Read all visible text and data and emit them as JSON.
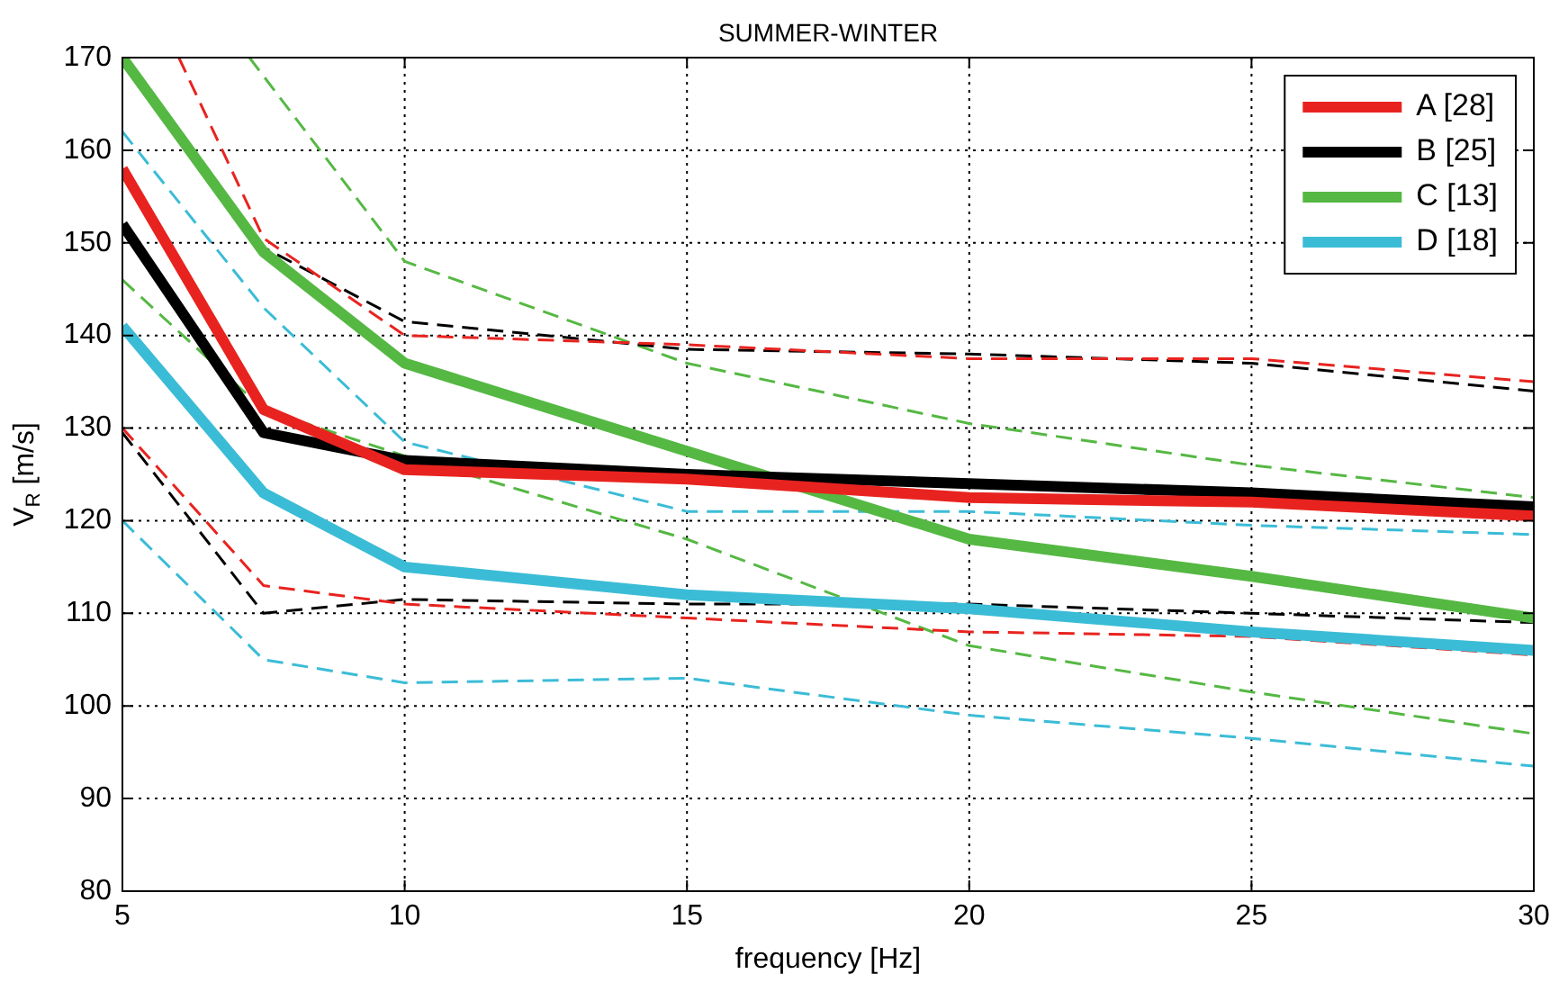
{
  "chart_data": {
    "type": "line",
    "title": "SUMMER-WINTER",
    "xlabel": "frequency [Hz]",
    "ylabel": "V$_{R}$ [m/s]",
    "x": [
      5,
      7.5,
      10,
      15,
      20,
      25,
      30
    ],
    "xlim": [
      5,
      30
    ],
    "xticks": [
      5,
      10,
      15,
      20,
      25,
      30
    ],
    "ylim": [
      80,
      170
    ],
    "yticks": [
      80,
      90,
      100,
      110,
      120,
      130,
      140,
      150,
      160,
      170
    ],
    "grid": true,
    "legend": "top right",
    "marker": "none",
    "series": [
      {
        "name": "A [28]",
        "color": "#e8231f",
        "values": [
          158,
          132,
          125.5,
          124.5,
          122.5,
          122,
          120.5
        ]
      },
      {
        "name": "B [25]",
        "color": "#000000",
        "values": [
          152,
          129.5,
          126.5,
          125,
          124,
          123,
          121.5
        ]
      },
      {
        "name": "C [13]",
        "color": "#55b843",
        "values": [
          170,
          149,
          137,
          127.5,
          118,
          114,
          109.5
        ]
      },
      {
        "name": "D [18]",
        "color": "#3bbcd6",
        "values": [
          141,
          123,
          115,
          112,
          110.5,
          108,
          106
        ]
      },
      {
        "color": "#e8231f",
        "line_style": "dashed",
        "x": [
          6,
          7.5,
          10,
          15,
          20,
          25,
          30
        ],
        "values": [
          170,
          150.5,
          140,
          139,
          137.5,
          137.5,
          135
        ]
      },
      {
        "color": "#e8231f",
        "line_style": "dashed",
        "values": [
          130,
          113,
          111,
          109.5,
          108,
          107.5,
          105.5
        ]
      },
      {
        "color": "#000000",
        "line_style": "dashed",
        "values": [
          170,
          149.5,
          141.5,
          138.5,
          138,
          137,
          134
        ]
      },
      {
        "color": "#000000",
        "line_style": "dashed",
        "values": [
          129.5,
          110,
          111.5,
          111,
          111,
          110,
          109
        ]
      },
      {
        "color": "#55b843",
        "line_style": "dashed",
        "x": [
          7.25,
          10,
          15,
          20,
          25,
          30
        ],
        "values": [
          170,
          148,
          137,
          130.5,
          126,
          122.5
        ]
      },
      {
        "color": "#55b843",
        "line_style": "dashed",
        "values": [
          146,
          132,
          127,
          118,
          106.5,
          101.5,
          97
        ]
      },
      {
        "color": "#3bbcd6",
        "line_style": "dashed",
        "values": [
          162,
          143,
          128.5,
          121,
          121,
          119.5,
          118.5
        ]
      },
      {
        "color": "#3bbcd6",
        "line_style": "dashed",
        "values": [
          120,
          105,
          102.5,
          103,
          99,
          96.5,
          93.5
        ]
      }
    ]
  }
}
